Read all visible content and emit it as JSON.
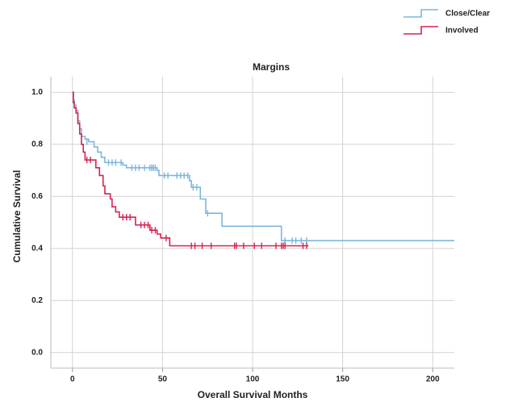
{
  "chart_data": {
    "type": "step",
    "title": "Margins",
    "x_label": "Overall Survival Months",
    "y_label": "Cumulative Survival",
    "xlim": [
      -12,
      212
    ],
    "ylim": [
      -0.06,
      1.06
    ],
    "xticks": [
      0,
      50,
      100,
      150,
      200
    ],
    "yticks": [
      {
        "value": 0,
        "label": "0.0"
      },
      {
        "value": 0.2,
        "label": "0.2"
      },
      {
        "value": 0.4,
        "label": "0.4"
      },
      {
        "value": 0.6,
        "label": "0.6"
      },
      {
        "value": 0.8,
        "label": "0.8"
      },
      {
        "value": 1,
        "label": "1.0"
      }
    ],
    "grid": true,
    "series": [
      {
        "name": "Close/Clear",
        "color": "#7db7db",
        "x": [
          0,
          0.5,
          1,
          2,
          3,
          4,
          5,
          7,
          9,
          12,
          14,
          16,
          18,
          28,
          30,
          47,
          48,
          65,
          66,
          71,
          74,
          83,
          116,
          212
        ],
        "values": [
          1.0,
          0.97,
          0.95,
          0.93,
          0.89,
          0.86,
          0.83,
          0.82,
          0.81,
          0.79,
          0.77,
          0.75,
          0.73,
          0.72,
          0.71,
          0.7,
          0.68,
          0.66,
          0.635,
          0.59,
          0.535,
          0.485,
          0.43,
          0.43
        ],
        "censored_x": [
          8,
          20,
          22,
          24,
          27,
          33,
          35,
          37,
          40,
          43,
          44,
          45,
          46,
          51,
          53,
          58,
          60,
          62,
          64,
          67,
          69,
          75,
          118,
          122,
          124,
          127,
          130
        ],
        "censored_values": [
          0.81,
          0.73,
          0.73,
          0.73,
          0.73,
          0.71,
          0.71,
          0.71,
          0.71,
          0.71,
          0.71,
          0.71,
          0.71,
          0.68,
          0.68,
          0.68,
          0.68,
          0.68,
          0.68,
          0.635,
          0.635,
          0.535,
          0.43,
          0.43,
          0.43,
          0.43,
          0.43
        ]
      },
      {
        "name": "Involved",
        "color": "#d42450",
        "x": [
          0,
          0.5,
          1,
          2,
          3,
          4,
          5,
          6,
          7,
          13,
          15,
          17,
          18,
          21,
          22,
          24,
          26,
          35,
          43,
          47,
          49,
          54,
          131
        ],
        "values": [
          1.0,
          0.96,
          0.94,
          0.92,
          0.88,
          0.84,
          0.8,
          0.77,
          0.74,
          0.71,
          0.68,
          0.64,
          0.61,
          0.59,
          0.56,
          0.54,
          0.52,
          0.49,
          0.47,
          0.455,
          0.44,
          0.41,
          0.41
        ],
        "censored_x": [
          8,
          10,
          28,
          30,
          32,
          38,
          40,
          42,
          44,
          46,
          52,
          66,
          68,
          72,
          77,
          90,
          91,
          95,
          101,
          105,
          113,
          116,
          117,
          118,
          128,
          130
        ],
        "censored_values": [
          0.74,
          0.74,
          0.52,
          0.52,
          0.52,
          0.49,
          0.49,
          0.49,
          0.47,
          0.47,
          0.44,
          0.41,
          0.41,
          0.41,
          0.41,
          0.41,
          0.41,
          0.41,
          0.41,
          0.41,
          0.41,
          0.41,
          0.41,
          0.41,
          0.41,
          0.41
        ]
      }
    ]
  }
}
